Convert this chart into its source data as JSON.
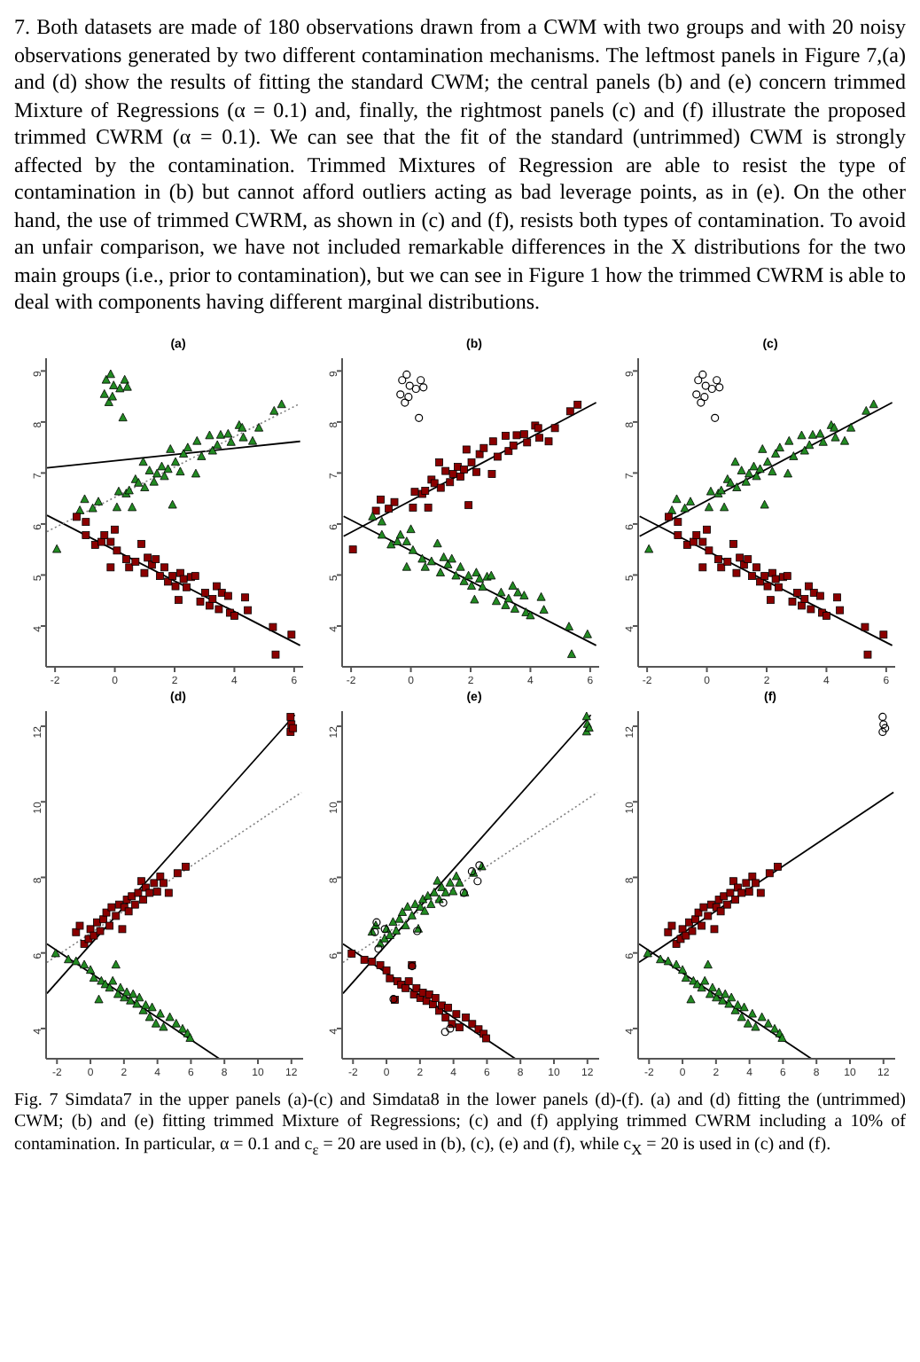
{
  "chart_data": [
    {
      "type": "other",
      "annotations": [
        "7. Both datasets are made of 180 observations drawn from a CWM with two groups and with 20 noisy observations generated by two different contamination mechanisms. The leftmost panels in Figure 7,(a) and (d) show the results of fitting the standard CWM; the central panels (b) and (e) concern trimmed Mixture of Regressions (α = 0.1) and, finally, the rightmost panels (c) and (f) illustrate the proposed trimmed CWRM (α = 0.1). We can see that the fit of the standard (untrimmed) CWM is strongly affected by the contamination. Trimmed Mixtures of Regression are able to resist the type of contamination in (b) but cannot afford outliers acting as bad leverage points, as in (e). On the other hand, the use of trimmed CWRM, as shown in (c) and (f), resists both types of contamination. To avoid an unfair comparison, we have not included remarkable differences in the X distributions for the two main groups (i.e., prior to contamination), but we can see in Figure 1 how the trimmed CWRM is able to deal with components having different marginal distributions.",
        "Fig. 7 Simdata7 in the upper panels (a)-(c) and Simdata8 in the lower panels (d)-(f). (a) and (d) fitting the (untrimmed) CWM; (b) and (e) fitting trimmed Mixture of Regressions; (c) and (f) applying trimmed CWRM including a 10% of contamination. In particular, α = 0.1 and c$_{ε}$ = 20 are used in (b), (c), (e) and (f), while c$_{X}$ = 20 is used in (c) and (f)."
      ]
    },
    {
      "type": "scatter",
      "title": "(a)",
      "xlim": [
        -2.3,
        6.3
      ],
      "ylim": [
        3.2,
        9.25
      ],
      "xticks": [
        -2,
        0,
        2,
        4,
        6
      ],
      "yticks": [
        4,
        5,
        6,
        7,
        8,
        9
      ],
      "series": [
        {
          "type": "scatter",
          "marker": "triangle",
          "color": "#228b22",
          "x": [
            -1.94,
            -1.17,
            -1.01,
            -0.74,
            -0.55,
            0.07,
            0.13,
            0.38,
            0.48,
            0.58,
            0.69,
            0.79,
            0.95,
            1.0,
            1.16,
            1.31,
            1.41,
            1.57,
            1.66,
            1.78,
            1.86,
            1.93,
            2.03,
            2.19,
            2.3,
            2.44,
            2.71,
            2.75,
            2.9,
            3.17,
            3.27,
            3.43,
            3.54,
            3.79,
            3.89,
            4.16,
            4.26,
            4.3,
            4.61,
            4.82,
            5.33,
            5.58
          ],
          "values": [
            5.5,
            6.26,
            6.48,
            6.3,
            6.43,
            6.32,
            6.63,
            6.59,
            6.65,
            6.32,
            6.87,
            6.8,
            7.21,
            6.71,
            7.04,
            6.82,
            6.98,
            7.12,
            6.93,
            7.07,
            7.46,
            6.37,
            7.21,
            7.02,
            7.37,
            7.49,
            6.98,
            7.62,
            7.32,
            7.73,
            7.43,
            7.54,
            7.74,
            7.76,
            7.6,
            7.93,
            7.88,
            7.69,
            7.62,
            7.88,
            8.21,
            8.34
          ]
        },
        {
          "type": "scatter",
          "marker": "square",
          "color": "#8b0000",
          "x": [
            -1.28,
            -0.97,
            -0.97,
            -0.66,
            -0.45,
            -0.35,
            -0.14,
            -0.14,
            0.0,
            0.07,
            0.38,
            0.48,
            0.69,
            0.89,
            0.99,
            1.1,
            1.24,
            1.37,
            1.51,
            1.66,
            1.78,
            1.93,
            2.03,
            2.19,
            2.3,
            2.4,
            2.13,
            2.55,
            2.69,
            2.86,
            3.02,
            3.17,
            3.27,
            3.41,
            3.48,
            3.58,
            3.79,
            3.85,
            4.0,
            4.36,
            4.45,
            5.29,
            5.91,
            5.38
          ],
          "values": [
            6.14,
            6.04,
            5.78,
            5.59,
            5.65,
            5.78,
            5.65,
            5.15,
            5.89,
            5.48,
            5.31,
            5.15,
            5.26,
            5.61,
            5.04,
            5.34,
            5.2,
            5.31,
            4.98,
            5.15,
            4.87,
            4.98,
            4.78,
            5.04,
            4.92,
            4.76,
            4.51,
            4.96,
            4.98,
            4.48,
            4.65,
            4.4,
            4.53,
            4.78,
            4.33,
            4.65,
            4.59,
            4.26,
            4.2,
            4.56,
            4.31,
            3.98,
            3.83,
            3.44
          ]
        },
        {
          "type": "scatter",
          "marker": "triangle",
          "color": "#228b22",
          "x": [
            -0.29,
            -0.14,
            -0.04,
            -0.35,
            -0.2,
            0.17,
            0.33,
            0.42,
            0.27,
            -0.08
          ],
          "values": [
            8.82,
            8.93,
            8.71,
            8.54,
            8.38,
            8.65,
            8.82,
            8.68,
            8.08,
            8.49
          ]
        },
        {
          "type": "line",
          "line_style": "solid",
          "color": "#000000",
          "x": [
            -2.27,
            6.2
          ],
          "values": [
            7.1,
            7.62
          ]
        },
        {
          "type": "line",
          "line_style": "solid",
          "color": "#000000",
          "x": [
            -2.27,
            6.2
          ],
          "values": [
            6.17,
            3.62
          ]
        },
        {
          "type": "line",
          "line_style": "dotted",
          "color": "#808080",
          "x": [
            -2.27,
            6.16
          ],
          "values": [
            5.85,
            8.35
          ]
        }
      ]
    },
    {
      "type": "scatter",
      "title": "(b)",
      "xlim": [
        -2.3,
        6.3
      ],
      "ylim": [
        3.2,
        9.25
      ],
      "xticks": [
        -2,
        0,
        2,
        4,
        6
      ],
      "yticks": [
        4,
        5,
        6,
        7,
        8,
        9
      ],
      "series": [
        {
          "type": "scatter",
          "marker": "square",
          "color": "#8b0000",
          "x": [
            -1.94,
            -1.17,
            -1.01,
            -0.74,
            -0.55,
            0.07,
            0.13,
            0.38,
            0.48,
            0.58,
            0.69,
            0.79,
            0.95,
            1.0,
            1.16,
            1.31,
            1.41,
            1.57,
            1.66,
            1.78,
            1.86,
            1.93,
            2.03,
            2.19,
            2.3,
            2.44,
            2.71,
            2.75,
            2.9,
            3.17,
            3.27,
            3.43,
            3.54,
            3.79,
            3.89,
            4.16,
            4.26,
            4.3,
            4.61,
            4.82,
            5.33,
            5.58
          ],
          "values": [
            5.5,
            6.26,
            6.48,
            6.3,
            6.43,
            6.32,
            6.63,
            6.59,
            6.65,
            6.32,
            6.87,
            6.8,
            7.21,
            6.71,
            7.04,
            6.82,
            6.98,
            7.12,
            6.93,
            7.07,
            7.46,
            6.37,
            7.21,
            7.02,
            7.37,
            7.49,
            6.98,
            7.62,
            7.32,
            7.73,
            7.43,
            7.54,
            7.74,
            7.76,
            7.6,
            7.93,
            7.88,
            7.69,
            7.62,
            7.88,
            8.21,
            8.34
          ]
        },
        {
          "type": "scatter",
          "marker": "triangle",
          "color": "#228b22",
          "x": [
            -1.28,
            -0.97,
            -0.97,
            -0.66,
            -0.45,
            -0.35,
            -0.14,
            -0.14,
            0.0,
            0.07,
            0.38,
            0.48,
            0.69,
            0.89,
            0.99,
            1.1,
            1.24,
            1.37,
            1.51,
            1.66,
            1.78,
            1.93,
            2.03,
            2.19,
            2.3,
            2.4,
            2.13,
            2.55,
            2.69,
            2.86,
            3.02,
            3.17,
            3.27,
            3.41,
            3.48,
            3.58,
            3.79,
            3.85,
            4.0,
            4.36,
            4.45,
            5.29,
            5.91,
            5.38
          ],
          "values": [
            6.14,
            6.04,
            5.78,
            5.59,
            5.65,
            5.78,
            5.65,
            5.15,
            5.89,
            5.48,
            5.31,
            5.15,
            5.26,
            5.61,
            5.04,
            5.34,
            5.2,
            5.31,
            4.98,
            5.15,
            4.87,
            4.98,
            4.78,
            5.04,
            4.92,
            4.76,
            4.51,
            4.96,
            4.98,
            4.48,
            4.65,
            4.4,
            4.53,
            4.78,
            4.33,
            4.65,
            4.59,
            4.26,
            4.2,
            4.56,
            4.31,
            3.98,
            3.83,
            3.44
          ]
        },
        {
          "type": "scatter",
          "marker": "circle",
          "color": "#000000",
          "x": [
            -0.29,
            -0.14,
            -0.04,
            -0.35,
            -0.2,
            0.17,
            0.33,
            0.42,
            0.27,
            -0.08
          ],
          "values": [
            8.82,
            8.93,
            8.71,
            8.54,
            8.38,
            8.65,
            8.82,
            8.68,
            8.08,
            8.49
          ]
        },
        {
          "type": "line",
          "line_style": "solid",
          "color": "#000000",
          "x": [
            -2.25,
            6.2
          ],
          "values": [
            5.76,
            8.38
          ]
        },
        {
          "type": "line",
          "line_style": "solid",
          "color": "#000000",
          "x": [
            -2.25,
            6.2
          ],
          "values": [
            6.15,
            3.62
          ]
        }
      ]
    },
    {
      "type": "scatter",
      "title": "(c)",
      "xlim": [
        -2.3,
        6.3
      ],
      "ylim": [
        3.2,
        9.25
      ],
      "xticks": [
        -2,
        0,
        2,
        4,
        6
      ],
      "yticks": [
        4,
        5,
        6,
        7,
        8,
        9
      ],
      "series": [
        {
          "type": "scatter",
          "marker": "triangle",
          "color": "#228b22",
          "x": [
            -1.94,
            -1.17,
            -1.01,
            -0.74,
            -0.55,
            0.07,
            0.13,
            0.38,
            0.48,
            0.58,
            0.69,
            0.79,
            0.95,
            1.0,
            1.16,
            1.31,
            1.41,
            1.57,
            1.66,
            1.78,
            1.86,
            1.93,
            2.03,
            2.19,
            2.3,
            2.44,
            2.71,
            2.75,
            2.9,
            3.17,
            3.27,
            3.43,
            3.54,
            3.79,
            3.89,
            4.16,
            4.26,
            4.3,
            4.61,
            4.82,
            5.33,
            5.58
          ],
          "values": [
            5.5,
            6.26,
            6.48,
            6.3,
            6.43,
            6.32,
            6.63,
            6.59,
            6.65,
            6.32,
            6.87,
            6.8,
            7.21,
            6.71,
            7.04,
            6.82,
            6.98,
            7.12,
            6.93,
            7.07,
            7.46,
            6.37,
            7.21,
            7.02,
            7.37,
            7.49,
            6.98,
            7.62,
            7.32,
            7.73,
            7.43,
            7.54,
            7.74,
            7.76,
            7.6,
            7.93,
            7.88,
            7.69,
            7.62,
            7.88,
            8.21,
            8.34
          ]
        },
        {
          "type": "scatter",
          "marker": "square",
          "color": "#8b0000",
          "x": [
            -1.28,
            -0.97,
            -0.97,
            -0.66,
            -0.45,
            -0.35,
            -0.14,
            -0.14,
            0.0,
            0.07,
            0.38,
            0.48,
            0.69,
            0.89,
            0.99,
            1.1,
            1.24,
            1.37,
            1.51,
            1.66,
            1.78,
            1.93,
            2.03,
            2.19,
            2.3,
            2.4,
            2.13,
            2.55,
            2.69,
            2.86,
            3.02,
            3.17,
            3.27,
            3.41,
            3.48,
            3.58,
            3.79,
            3.85,
            4.0,
            4.36,
            4.45,
            5.29,
            5.91,
            5.38
          ],
          "values": [
            6.14,
            6.04,
            5.78,
            5.59,
            5.65,
            5.78,
            5.65,
            5.15,
            5.89,
            5.48,
            5.31,
            5.15,
            5.26,
            5.61,
            5.04,
            5.34,
            5.2,
            5.31,
            4.98,
            5.15,
            4.87,
            4.98,
            4.78,
            5.04,
            4.92,
            4.76,
            4.51,
            4.96,
            4.98,
            4.48,
            4.65,
            4.4,
            4.53,
            4.78,
            4.33,
            4.65,
            4.59,
            4.26,
            4.2,
            4.56,
            4.31,
            3.98,
            3.83,
            3.44
          ]
        },
        {
          "type": "scatter",
          "marker": "circle",
          "color": "#000000",
          "x": [
            -0.29,
            -0.14,
            -0.04,
            -0.35,
            -0.2,
            0.17,
            0.33,
            0.42,
            0.27,
            -0.08
          ],
          "values": [
            8.82,
            8.93,
            8.71,
            8.54,
            8.38,
            8.65,
            8.82,
            8.68,
            8.08,
            8.49
          ]
        },
        {
          "type": "line",
          "line_style": "solid",
          "color": "#000000",
          "x": [
            -2.25,
            6.2
          ],
          "values": [
            5.76,
            8.38
          ]
        },
        {
          "type": "line",
          "line_style": "solid",
          "color": "#000000",
          "x": [
            -2.25,
            6.2
          ],
          "values": [
            6.15,
            3.62
          ]
        }
      ]
    },
    {
      "type": "scatter",
      "title": "(d)",
      "xlim": [
        -2.65,
        12.7
      ],
      "ylim": [
        3.2,
        12.4
      ],
      "xticks": [
        -2,
        0,
        2,
        4,
        6,
        8,
        10,
        12
      ],
      "yticks": [
        4,
        6,
        8,
        10,
        12
      ],
      "series": [
        {
          "type": "scatter",
          "marker": "square",
          "color": "#8b0000",
          "x": [
            -0.86,
            -0.64,
            -0.37,
            -0.11,
            0.0,
            0.2,
            0.39,
            0.58,
            0.77,
            0.95,
            1.14,
            1.26,
            1.52,
            1.71,
            1.9,
            2.02,
            2.17,
            2.28,
            2.47,
            2.66,
            2.85,
            3.04,
            3.15,
            3.3,
            3.53,
            3.8,
            3.98,
            4.17,
            4.36,
            4.67,
            5.2,
            5.69
          ],
          "values": [
            6.55,
            6.72,
            6.24,
            6.37,
            6.63,
            6.46,
            6.81,
            6.58,
            6.89,
            7.07,
            6.72,
            7.21,
            6.98,
            7.28,
            6.63,
            7.21,
            7.41,
            7.1,
            7.5,
            7.28,
            7.59,
            7.9,
            7.41,
            7.73,
            7.59,
            7.85,
            7.62,
            8.02,
            7.85,
            7.59,
            8.11,
            8.28
          ]
        },
        {
          "type": "scatter",
          "marker": "triangle",
          "color": "#228b22",
          "x": [
            -2.08,
            -1.32,
            -0.86,
            -0.37,
            0.0,
            0.2,
            0.5,
            0.65,
            0.88,
            1.14,
            1.33,
            1.52,
            1.64,
            1.79,
            2.02,
            2.17,
            2.39,
            2.55,
            2.77,
            2.92,
            3.15,
            3.3,
            3.53,
            3.68,
            3.91,
            4.17,
            4.36,
            4.74,
            5.12,
            5.5,
            5.8,
            5.95
          ],
          "values": [
            5.98,
            5.82,
            5.77,
            5.68,
            5.54,
            5.33,
            4.76,
            5.25,
            5.16,
            5.07,
            5.25,
            5.68,
            4.9,
            5.07,
            4.81,
            4.95,
            4.73,
            4.9,
            4.64,
            4.81,
            4.47,
            4.61,
            4.29,
            4.55,
            4.12,
            4.38,
            4.03,
            4.29,
            4.12,
            3.98,
            3.86,
            3.74
          ]
        },
        {
          "type": "scatter",
          "marker": "square",
          "color": "#8b0000",
          "x": [
            11.95,
            12.0,
            11.95,
            12.1
          ],
          "values": [
            11.85,
            12.05,
            12.25,
            11.95
          ]
        },
        {
          "type": "line",
          "line_style": "solid",
          "color": "#000000",
          "x": [
            -2.6,
            12.2
          ],
          "values": [
            4.93,
            12.3
          ]
        },
        {
          "type": "line",
          "line_style": "dotted",
          "color": "#808080",
          "x": [
            -2.6,
            12.6
          ],
          "values": [
            5.75,
            10.25
          ]
        },
        {
          "type": "line",
          "line_style": "solid",
          "color": "#000000",
          "x": [
            -2.6,
            7.7
          ],
          "values": [
            6.24,
            3.2
          ]
        }
      ]
    },
    {
      "type": "scatter",
      "title": "(e)",
      "xlim": [
        -2.65,
        12.7
      ],
      "ylim": [
        3.2,
        12.4
      ],
      "xticks": [
        -2,
        0,
        2,
        4,
        6,
        8,
        10,
        12
      ],
      "yticks": [
        4,
        6,
        8,
        10,
        12
      ],
      "series": [
        {
          "type": "scatter",
          "marker": "triangle",
          "color": "#228b22",
          "x": [
            -0.86,
            -0.64,
            -0.37,
            -0.11,
            0.0,
            0.2,
            0.39,
            0.58,
            0.77,
            0.95,
            1.14,
            1.26,
            1.52,
            1.71,
            1.9,
            2.02,
            2.17,
            2.28,
            2.47,
            2.66,
            2.85,
            3.04,
            3.15,
            3.3,
            3.53,
            3.8,
            3.98,
            4.17,
            4.36,
            4.67,
            5.2,
            5.69
          ],
          "values": [
            6.55,
            6.72,
            6.24,
            6.37,
            6.63,
            6.46,
            6.81,
            6.58,
            6.89,
            7.07,
            6.72,
            7.21,
            6.98,
            7.28,
            6.63,
            7.21,
            7.41,
            7.1,
            7.5,
            7.28,
            7.59,
            7.9,
            7.41,
            7.73,
            7.59,
            7.85,
            7.62,
            8.02,
            7.85,
            7.59,
            8.11,
            8.28
          ]
        },
        {
          "type": "scatter",
          "marker": "square",
          "color": "#8b0000",
          "x": [
            -2.08,
            -1.32,
            -0.86,
            -0.37,
            0.0,
            0.2,
            0.5,
            0.65,
            0.88,
            1.14,
            1.33,
            1.52,
            1.64,
            1.79,
            2.02,
            2.17,
            2.39,
            2.55,
            2.77,
            2.92,
            3.15,
            3.3,
            3.53,
            3.68,
            3.91,
            4.17,
            4.36,
            4.74,
            5.12,
            5.5,
            5.8,
            5.95
          ],
          "values": [
            5.98,
            5.82,
            5.77,
            5.68,
            5.54,
            5.33,
            4.76,
            5.25,
            5.16,
            5.07,
            5.25,
            5.68,
            4.9,
            5.07,
            4.81,
            4.95,
            4.73,
            4.9,
            4.64,
            4.81,
            4.47,
            4.61,
            4.29,
            4.55,
            4.12,
            4.38,
            4.03,
            4.29,
            4.12,
            3.98,
            3.86,
            3.74
          ]
        },
        {
          "type": "scatter",
          "marker": "triangle",
          "color": "#228b22",
          "x": [
            11.95,
            12.0,
            11.95,
            12.1
          ],
          "values": [
            11.85,
            12.05,
            12.25,
            11.95
          ]
        },
        {
          "type": "scatter",
          "marker": "circle",
          "color": "#000000",
          "x": [
            -0.7,
            -0.59,
            -0.48,
            -0.1,
            1.83,
            3.39,
            4.62,
            5.1,
            5.55,
            5.44,
            1.53,
            0.42,
            3.5,
            3.8
          ],
          "values": [
            6.55,
            6.81,
            6.11,
            6.63,
            6.58,
            7.33,
            7.59,
            8.16,
            8.32,
            7.9,
            5.65,
            4.78,
            3.91,
            4.0
          ]
        },
        {
          "type": "line",
          "line_style": "solid",
          "color": "#000000",
          "x": [
            -2.6,
            12.2
          ],
          "values": [
            4.93,
            12.3
          ]
        },
        {
          "type": "line",
          "line_style": "dotted",
          "color": "#808080",
          "x": [
            -2.6,
            12.6
          ],
          "values": [
            5.75,
            10.25
          ]
        },
        {
          "type": "line",
          "line_style": "solid",
          "color": "#000000",
          "x": [
            -2.6,
            7.7
          ],
          "values": [
            6.24,
            3.2
          ]
        }
      ]
    },
    {
      "type": "scatter",
      "title": "(f)",
      "xlim": [
        -2.65,
        12.7
      ],
      "ylim": [
        3.2,
        12.4
      ],
      "xticks": [
        -2,
        0,
        2,
        4,
        6,
        8,
        10,
        12
      ],
      "yticks": [
        4,
        6,
        8,
        10,
        12
      ],
      "series": [
        {
          "type": "scatter",
          "marker": "square",
          "color": "#8b0000",
          "x": [
            -0.86,
            -0.64,
            -0.37,
            -0.11,
            0.0,
            0.2,
            0.39,
            0.58,
            0.77,
            0.95,
            1.14,
            1.26,
            1.52,
            1.71,
            1.9,
            2.02,
            2.17,
            2.28,
            2.47,
            2.66,
            2.85,
            3.04,
            3.15,
            3.3,
            3.53,
            3.8,
            3.98,
            4.17,
            4.36,
            4.67,
            5.2,
            5.69
          ],
          "values": [
            6.55,
            6.72,
            6.24,
            6.37,
            6.63,
            6.46,
            6.81,
            6.58,
            6.89,
            7.07,
            6.72,
            7.21,
            6.98,
            7.28,
            6.63,
            7.21,
            7.41,
            7.1,
            7.5,
            7.28,
            7.59,
            7.9,
            7.41,
            7.73,
            7.59,
            7.85,
            7.62,
            8.02,
            7.85,
            7.59,
            8.11,
            8.28
          ]
        },
        {
          "type": "scatter",
          "marker": "triangle",
          "color": "#228b22",
          "x": [
            -2.08,
            -1.32,
            -0.86,
            -0.37,
            0.0,
            0.2,
            0.5,
            0.65,
            0.88,
            1.14,
            1.33,
            1.52,
            1.64,
            1.79,
            2.02,
            2.17,
            2.39,
            2.55,
            2.77,
            2.92,
            3.15,
            3.3,
            3.53,
            3.68,
            3.91,
            4.17,
            4.36,
            4.74,
            5.12,
            5.5,
            5.8,
            5.95
          ],
          "values": [
            5.98,
            5.82,
            5.77,
            5.68,
            5.54,
            5.33,
            4.76,
            5.25,
            5.16,
            5.07,
            5.25,
            5.68,
            4.9,
            5.07,
            4.81,
            4.95,
            4.73,
            4.9,
            4.64,
            4.81,
            4.47,
            4.61,
            4.29,
            4.55,
            4.12,
            4.38,
            4.03,
            4.29,
            4.12,
            3.98,
            3.86,
            3.74
          ]
        },
        {
          "type": "scatter",
          "marker": "circle",
          "color": "#000000",
          "x": [
            11.95,
            12.0,
            11.95,
            12.1
          ],
          "values": [
            11.85,
            12.05,
            12.25,
            11.95
          ]
        },
        {
          "type": "line",
          "line_style": "solid",
          "color": "#000000",
          "x": [
            -2.6,
            12.6
          ],
          "values": [
            5.75,
            10.25
          ]
        },
        {
          "type": "line",
          "line_style": "solid",
          "color": "#000000",
          "x": [
            -2.6,
            7.7
          ],
          "values": [
            6.24,
            3.2
          ]
        }
      ]
    }
  ]
}
